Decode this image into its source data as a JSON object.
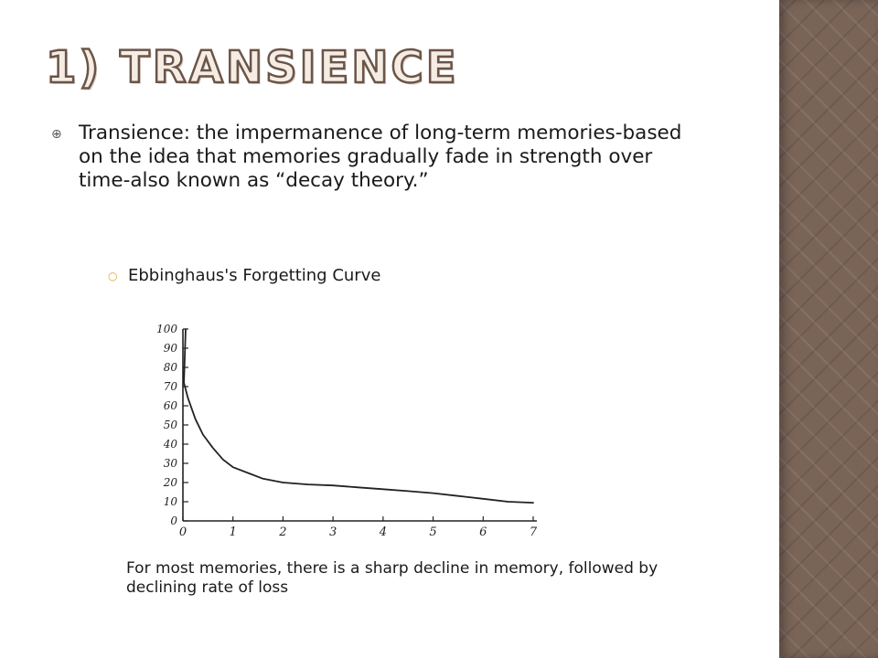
{
  "slide": {
    "title": "1) Transience",
    "bullet_text": "Transience: the impermanence of long-term memories-based on the idea that memories gradually fade in strength over time-also known as “decay theory.”",
    "sub_bullet_text": "Ebbinghaus's Forgetting Curve",
    "caption": "For most memories, there is a sharp decline in memory, followed by declining rate of loss"
  },
  "colors": {
    "title_fill": "#f5ede4",
    "title_outline": "#6b5448",
    "side_panel": "#7a6458",
    "sub_bullet_marker": "#e8a030"
  },
  "chart_data": {
    "type": "line",
    "title": "",
    "xlabel": "",
    "ylabel": "",
    "x_ticks": [
      "0",
      "1",
      "2",
      "3",
      "4",
      "5",
      "6",
      "7"
    ],
    "y_ticks": [
      "0",
      "10",
      "20",
      "30",
      "40",
      "50",
      "60",
      "70",
      "80",
      "90",
      "100"
    ],
    "xlim": [
      0,
      7
    ],
    "ylim": [
      0,
      100
    ],
    "grid": false,
    "series": [
      {
        "x": [
          0,
          0,
          0.02,
          0.1,
          0.25,
          0.4,
          0.6,
          0.8,
          1.0,
          1.3,
          1.6,
          2.0,
          2.5,
          3.0,
          3.5,
          4.0,
          4.5,
          5.0,
          5.5,
          6.0,
          6.5,
          7.0
        ],
        "values": [
          100,
          100,
          72,
          64,
          53,
          45,
          38,
          32,
          28,
          25,
          22,
          20,
          19,
          18.5,
          17.5,
          16.5,
          15.5,
          14.5,
          13,
          11.5,
          10,
          9.5
        ]
      }
    ]
  }
}
